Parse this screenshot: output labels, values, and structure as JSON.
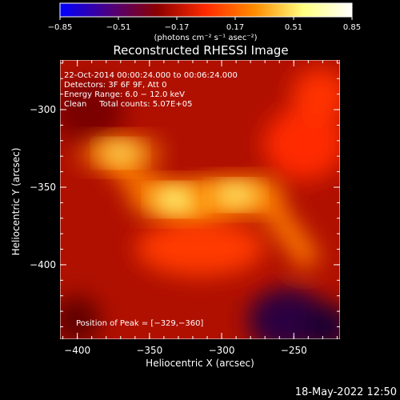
{
  "chart_data": {
    "type": "heatmap",
    "title": "Reconstructed RHESSI Image",
    "xlabel": "Heliocentric X (arcsec)",
    "ylabel": "Heliocentric Y (arcsec)",
    "xlim": [
      -412,
      -218
    ],
    "ylim": [
      -448,
      -268
    ],
    "x_ticks": [
      -400,
      -350,
      -300,
      -250
    ],
    "x_tick_labels": [
      "−400",
      "−350",
      "−300",
      "−250"
    ],
    "y_ticks": [
      -300,
      -350,
      -400
    ],
    "y_tick_labels": [
      "−300",
      "−350",
      "−400"
    ],
    "colorbar": {
      "min": -0.85,
      "max": 0.85,
      "ticks": [
        -0.85,
        -0.51,
        -0.17,
        0.17,
        0.51,
        0.85
      ],
      "tick_labels": [
        "−0.85",
        "−0.51",
        "−0.17",
        "0.17",
        "0.51",
        "0.85"
      ],
      "units_label": "(photons cm⁻² s⁻¹ asec⁻²)",
      "colors": [
        "#0000ff",
        "#4b0082",
        "#8b0000",
        "#ff2a00",
        "#ff8c00",
        "#ffff80",
        "#ffffff"
      ]
    },
    "annotations": [
      "22-Oct-2014 00:00:24.000 to 00:06:24.000",
      "Detectors: 3F 6F 9F, Att 0",
      "Energy Range: 6.0 − 12.0 keV",
      "Clean     Total counts: 5.07E+05"
    ],
    "peak_label": "Position of Peak = [−329,−360]",
    "peak": [
      -329,
      -360
    ],
    "sources": [
      {
        "x": -331,
        "y": -358,
        "peak": 0.85
      },
      {
        "x": -290,
        "y": -355,
        "peak": 0.75
      },
      {
        "x": -370,
        "y": -328,
        "peak": 0.62
      }
    ]
  },
  "footer": {
    "timestamp": "18-May-2022 12:50"
  }
}
